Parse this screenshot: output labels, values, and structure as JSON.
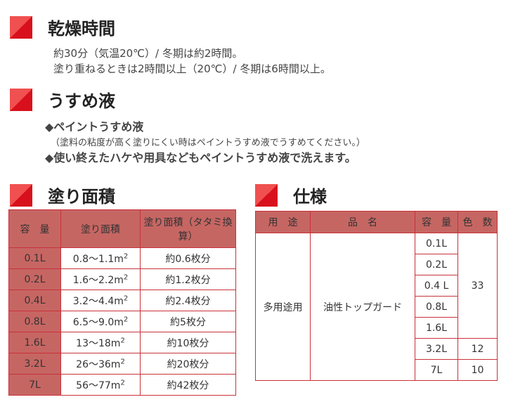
{
  "drying": {
    "title": "乾燥時間",
    "lines": [
      "約30分（気温20℃）/ 冬期は約2時間。",
      "塗り重ねるときは2時間以上（20℃）/ 冬期は6時間以上。"
    ]
  },
  "thinner": {
    "title": "うすめ液",
    "line1": "◆ペイントうすめ液",
    "line2": "（塗料の粘度が高く塗りにくい時はペイントうすめ液でうすめてください。）",
    "line3": "◆使い終えたハケや用具などもペイントうすめ液で洗えます。"
  },
  "coverage": {
    "title": "塗り面積",
    "headers": [
      "容　量",
      "塗り面積",
      "塗り面積（タタミ換算）"
    ],
    "rows": [
      [
        "0.1L",
        "0.8～1.1m",
        "約0.6枚分"
      ],
      [
        "0.2L",
        "1.6～2.2m",
        "約1.2枚分"
      ],
      [
        "0.4L",
        "3.2～4.4m",
        "約2.4枚分"
      ],
      [
        "0.8L",
        "6.5～9.0m",
        "約5枚分"
      ],
      [
        "1.6L",
        "13～18m",
        "約10枚分"
      ],
      [
        "3.2L",
        "26～36m",
        "約20枚分"
      ],
      [
        "7L",
        "56～77m",
        "約42枚分"
      ]
    ],
    "sup": "2"
  },
  "spec": {
    "title": "仕様",
    "headers": [
      "用　途",
      "品　名",
      "容　量",
      "色　数"
    ],
    "use": "多用途用",
    "product": "油性トップガード",
    "sizes": [
      "0.1L",
      "0.2L",
      "0.4 L",
      "0.8L",
      "1.6L",
      "3.2L",
      "7L"
    ],
    "colors": [
      "33",
      "12",
      "10"
    ]
  },
  "colors": {
    "accent": "#d8101c",
    "header_bg": "#c66663",
    "border": "#c8323a"
  }
}
